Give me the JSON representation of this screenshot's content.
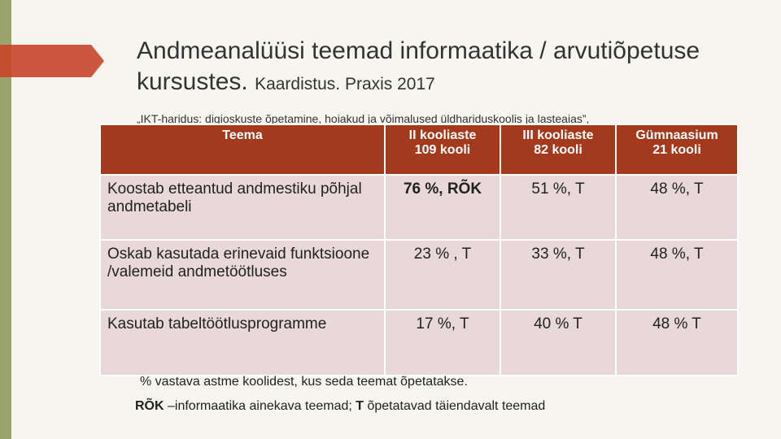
{
  "header": {
    "title_main": "Andmeanalüüsi teemad informaatika / arvutiõpetuse kursustes.",
    "title_sub": "Kaardistus. Praxis 2017",
    "citation": "„IKT-haridus: digioskuste õpetamine, hoiakud ja võimalused üldhariduskoolis ja lasteaias”,"
  },
  "table": {
    "columns": [
      {
        "name": "Teema"
      },
      {
        "name": "II kooliaste",
        "count": "109 kooli"
      },
      {
        "name": "III kooliaste",
        "count": "82 kooli"
      },
      {
        "name": "Gümnaasium",
        "count": "21 kooli"
      }
    ],
    "rows": [
      [
        "Koostab etteantud andmestiku põhjal andmetabeli",
        "76 %, RÕK",
        "51 %, T",
        "48 %,  T"
      ],
      [
        "Oskab kasutada erinevaid funktsioone /valemeid andmetöötluses",
        "23 % , T",
        "33 %,  T",
        "48 %, T"
      ],
      [
        "Kasutab tabeltöötlusprogramme",
        "17 %,  T",
        "40 %  T",
        "48 % T"
      ]
    ]
  },
  "footnotes": {
    "note1": "% vastava astme koolidest, kus seda teemat õpetatakse.",
    "note2": [
      "RÕK",
      " –informaatika ainekava teemad; ",
      "T",
      " õpetatavad täiendavalt teemad"
    ]
  }
}
